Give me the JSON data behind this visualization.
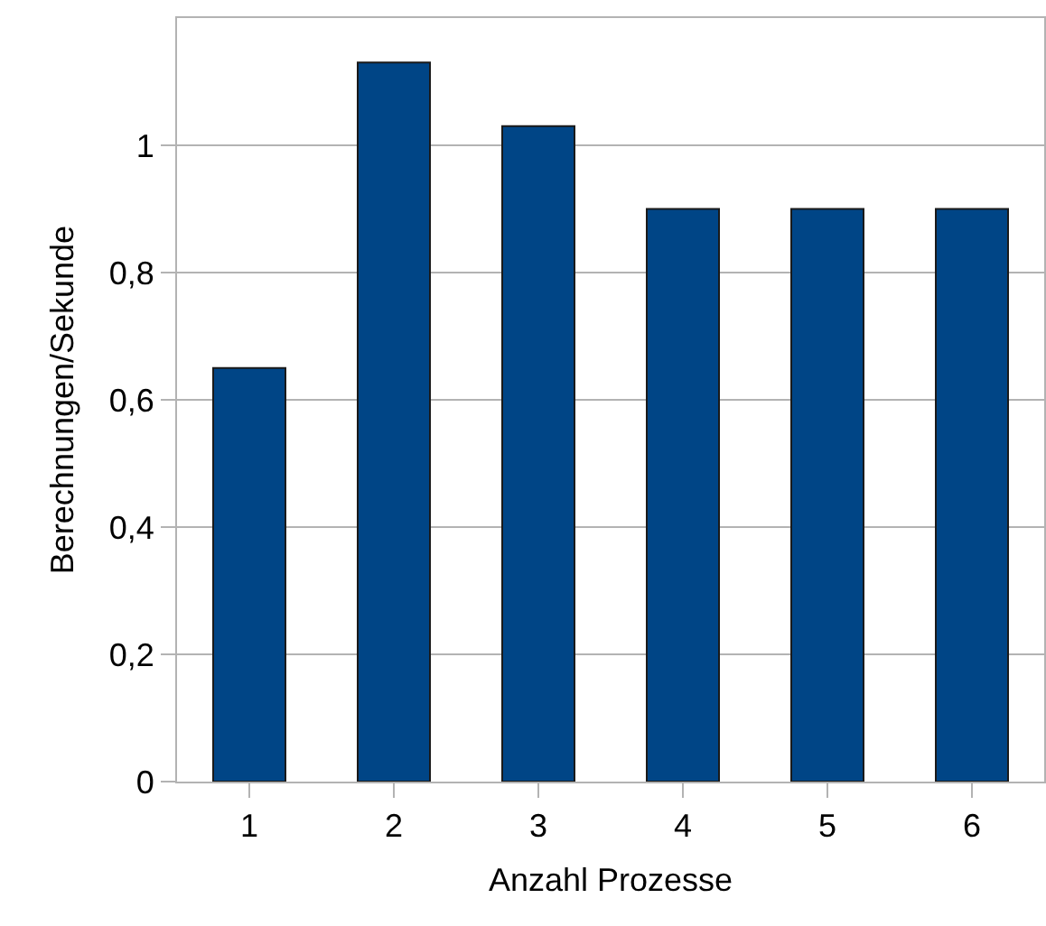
{
  "chart_data": {
    "type": "bar",
    "xlabel": "Anzahl Prozesse",
    "ylabel": "Berechnungen/Sekunde",
    "categories": [
      "1",
      "2",
      "3",
      "4",
      "5",
      "6"
    ],
    "values": [
      0.65,
      1.13,
      1.03,
      0.9,
      0.9,
      0.9
    ],
    "color": "#004586",
    "ylim": [
      0,
      1.2
    ],
    "yticks": [
      0,
      {
        "value": 0.2,
        "label": "0,2"
      },
      {
        "value": 0.4,
        "label": "0,4"
      },
      {
        "value": 0.6,
        "label": "0,6"
      },
      {
        "value": 0.8,
        "label": "0,8"
      },
      1
    ],
    "grid": "y",
    "legend": false
  }
}
